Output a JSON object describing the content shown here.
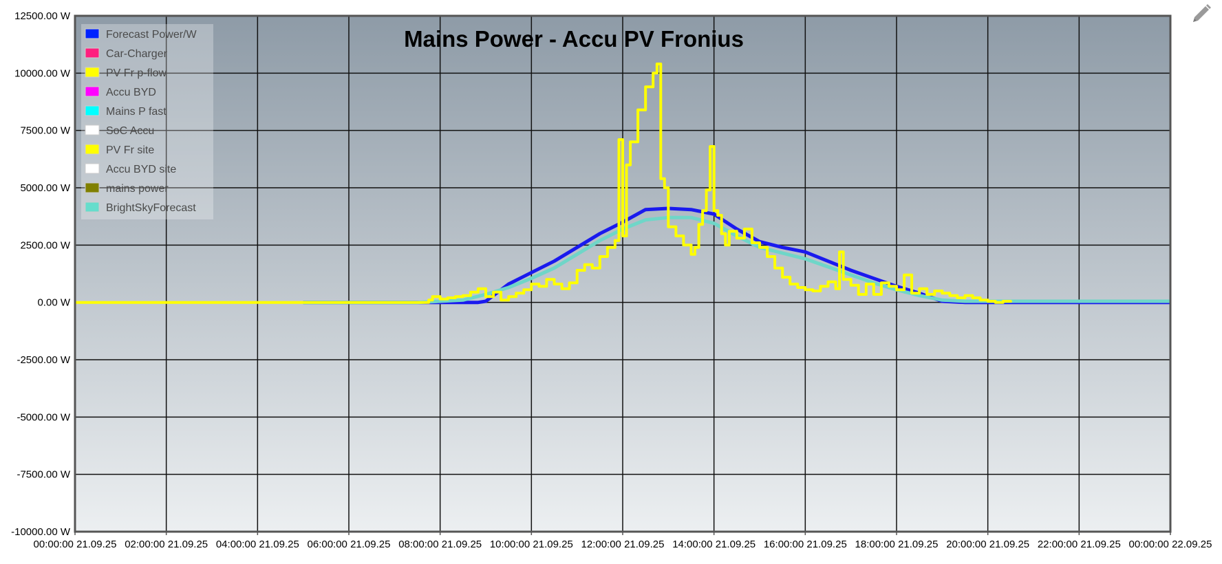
{
  "chart_data": {
    "type": "line",
    "title": "Mains Power - Accu PV Fronius",
    "xlabel": "",
    "ylabel": "",
    "x_ticks": [
      "00:00:00 21.09.25",
      "02:00:00 21.09.25",
      "04:00:00 21.09.25",
      "06:00:00 21.09.25",
      "08:00:00 21.09.25",
      "10:00:00 21.09.25",
      "12:00:00 21.09.25",
      "14:00:00 21.09.25",
      "16:00:00 21.09.25",
      "18:00:00 21.09.25",
      "20:00:00 21.09.25",
      "22:00:00 21.09.25",
      "00:00:00 22.09.25"
    ],
    "xlim": [
      "00:00",
      "24:00"
    ],
    "y_ticks": [
      "12500.00 W",
      "10000.00 W",
      "7500.00 W",
      "5000.00 W",
      "2500.00 W",
      "0.00 W",
      "-2500.00 W",
      "-5000.00 W",
      "-7500.00 W",
      "-10000.00 W"
    ],
    "ylim": [
      -10000,
      12500
    ],
    "grid": true,
    "legend_position": "top-left",
    "legend": [
      {
        "name": "Forecast Power/W",
        "color": "#0022ff"
      },
      {
        "name": "Car-Charger",
        "color": "#ff1f7f"
      },
      {
        "name": "PV Fr p-flow",
        "color": "#ffff00"
      },
      {
        "name": "Accu BYD",
        "color": "#ff00ff"
      },
      {
        "name": "Mains P fast",
        "color": "#00ffff"
      },
      {
        "name": "SoC Accu",
        "color": "#ffffff"
      },
      {
        "name": "PV Fr site",
        "color": "#ffff00"
      },
      {
        "name": "Accu BYD site",
        "color": "#ffffff"
      },
      {
        "name": "mains power",
        "color": "#808000"
      },
      {
        "name": "BrightSkyForecast",
        "color": "#66ddcc"
      }
    ],
    "series": [
      {
        "name": "Forecast Power/W",
        "color": "#1a1aee",
        "points": [
          [
            "05:00",
            0
          ],
          [
            "08:00",
            0
          ],
          [
            "08:50",
            0
          ],
          [
            "09:00",
            50
          ],
          [
            "09:30",
            800
          ],
          [
            "10:00",
            1300
          ],
          [
            "10:30",
            1800
          ],
          [
            "11:00",
            2400
          ],
          [
            "11:30",
            3000
          ],
          [
            "12:00",
            3500
          ],
          [
            "12:30",
            4050
          ],
          [
            "13:00",
            4100
          ],
          [
            "13:30",
            4050
          ],
          [
            "14:00",
            3850
          ],
          [
            "14:30",
            3200
          ],
          [
            "15:00",
            2650
          ],
          [
            "15:30",
            2400
          ],
          [
            "16:00",
            2200
          ],
          [
            "16:30",
            1800
          ],
          [
            "17:00",
            1400
          ],
          [
            "17:30",
            1050
          ],
          [
            "18:00",
            700
          ],
          [
            "18:30",
            400
          ],
          [
            "19:00",
            50
          ],
          [
            "19:30",
            0
          ],
          [
            "24:00",
            0
          ]
        ]
      },
      {
        "name": "BrightSkyForecast",
        "color": "#6fd6c8",
        "points": [
          [
            "05:00",
            0
          ],
          [
            "07:30",
            0
          ],
          [
            "08:00",
            50
          ],
          [
            "08:30",
            100
          ],
          [
            "09:00",
            350
          ],
          [
            "09:30",
            650
          ],
          [
            "10:00",
            1050
          ],
          [
            "10:30",
            1500
          ],
          [
            "11:00",
            2100
          ],
          [
            "11:30",
            2700
          ],
          [
            "12:00",
            3200
          ],
          [
            "12:30",
            3600
          ],
          [
            "13:00",
            3700
          ],
          [
            "13:30",
            3700
          ],
          [
            "14:00",
            3450
          ],
          [
            "14:30",
            2900
          ],
          [
            "15:00",
            2400
          ],
          [
            "15:30",
            2150
          ],
          [
            "16:00",
            1900
          ],
          [
            "16:30",
            1550
          ],
          [
            "17:00",
            1200
          ],
          [
            "17:30",
            850
          ],
          [
            "18:00",
            550
          ],
          [
            "18:30",
            300
          ],
          [
            "19:00",
            100
          ],
          [
            "19:30",
            50
          ],
          [
            "24:00",
            50
          ]
        ]
      },
      {
        "name": "PV Fr p-flow",
        "color": "#ffff00",
        "step": true,
        "points": [
          [
            "00:00",
            0
          ],
          [
            "05:00",
            0
          ],
          [
            "07:30",
            0
          ],
          [
            "07:45",
            100
          ],
          [
            "07:50",
            250
          ],
          [
            "08:00",
            150
          ],
          [
            "08:10",
            200
          ],
          [
            "08:20",
            250
          ],
          [
            "08:30",
            300
          ],
          [
            "08:40",
            450
          ],
          [
            "08:50",
            600
          ],
          [
            "09:00",
            250
          ],
          [
            "09:10",
            450
          ],
          [
            "09:20",
            100
          ],
          [
            "09:30",
            250
          ],
          [
            "09:40",
            400
          ],
          [
            "09:50",
            550
          ],
          [
            "10:00",
            800
          ],
          [
            "10:10",
            700
          ],
          [
            "10:20",
            1000
          ],
          [
            "10:30",
            800
          ],
          [
            "10:40",
            600
          ],
          [
            "10:50",
            850
          ],
          [
            "11:00",
            1400
          ],
          [
            "11:10",
            1650
          ],
          [
            "11:20",
            1500
          ],
          [
            "11:30",
            2000
          ],
          [
            "11:40",
            2400
          ],
          [
            "11:50",
            2700
          ],
          [
            "11:55",
            7100
          ],
          [
            "12:00",
            2900
          ],
          [
            "12:05",
            6000
          ],
          [
            "12:10",
            7000
          ],
          [
            "12:20",
            8400
          ],
          [
            "12:30",
            9400
          ],
          [
            "12:40",
            10000
          ],
          [
            "12:45",
            10400
          ],
          [
            "12:50",
            5400
          ],
          [
            "12:55",
            5000
          ],
          [
            "13:00",
            3300
          ],
          [
            "13:10",
            2900
          ],
          [
            "13:20",
            2500
          ],
          [
            "13:30",
            2100
          ],
          [
            "13:35",
            2400
          ],
          [
            "13:40",
            3400
          ],
          [
            "13:45",
            4000
          ],
          [
            "13:50",
            4900
          ],
          [
            "13:55",
            6800
          ],
          [
            "14:00",
            4000
          ],
          [
            "14:05",
            3800
          ],
          [
            "14:10",
            3000
          ],
          [
            "14:15",
            2500
          ],
          [
            "14:20",
            3100
          ],
          [
            "14:30",
            2800
          ],
          [
            "14:40",
            3200
          ],
          [
            "14:50",
            2600
          ],
          [
            "15:00",
            2400
          ],
          [
            "15:10",
            2000
          ],
          [
            "15:20",
            1500
          ],
          [
            "15:30",
            1100
          ],
          [
            "15:40",
            800
          ],
          [
            "15:50",
            650
          ],
          [
            "16:00",
            550
          ],
          [
            "16:10",
            500
          ],
          [
            "16:20",
            700
          ],
          [
            "16:30",
            900
          ],
          [
            "16:40",
            600
          ],
          [
            "16:45",
            2200
          ],
          [
            "16:50",
            1000
          ],
          [
            "17:00",
            750
          ],
          [
            "17:10",
            350
          ],
          [
            "17:20",
            800
          ],
          [
            "17:30",
            350
          ],
          [
            "17:40",
            850
          ],
          [
            "17:50",
            700
          ],
          [
            "18:00",
            550
          ],
          [
            "18:10",
            1200
          ],
          [
            "18:20",
            400
          ],
          [
            "18:30",
            600
          ],
          [
            "18:40",
            350
          ],
          [
            "18:50",
            500
          ],
          [
            "19:00",
            400
          ],
          [
            "19:10",
            300
          ],
          [
            "19:20",
            200
          ],
          [
            "19:30",
            300
          ],
          [
            "19:40",
            200
          ],
          [
            "19:50",
            100
          ],
          [
            "20:00",
            50
          ],
          [
            "20:10",
            0
          ],
          [
            "20:20",
            50
          ],
          [
            "20:30",
            0
          ]
        ]
      }
    ]
  },
  "toolbar": {
    "edit_icon": "pencil-icon"
  },
  "colors": {
    "plot_gradient_top": "#8e9ba7",
    "plot_gradient_bottom": "#eceff1",
    "grid": "#111111",
    "axis": "#555555"
  }
}
